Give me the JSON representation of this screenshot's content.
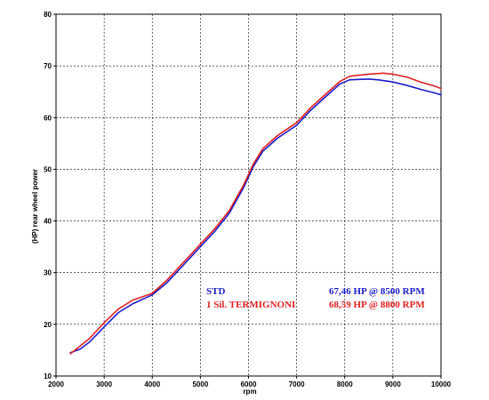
{
  "chart_data": {
    "type": "line",
    "xlabel": "rpm",
    "ylabel": "(HP)  rear wheel power",
    "xlim": [
      2000,
      10000
    ],
    "ylim": [
      10,
      80
    ],
    "x_ticks": [
      "2000",
      "3000",
      "4000",
      "5000",
      "6000",
      "7000",
      "8000",
      "9000",
      "10000"
    ],
    "y_ticks": [
      "10",
      "20",
      "30",
      "40",
      "50",
      "60",
      "70",
      "80"
    ],
    "grid": true,
    "series": [
      {
        "name": "STD",
        "summary": "67,46 HP @ 8500 RPM",
        "color": "#1c1cc8",
        "x": [
          2300,
          2500,
          2700,
          3000,
          3300,
          3600,
          4000,
          4300,
          4600,
          5000,
          5300,
          5600,
          5900,
          6100,
          6300,
          6600,
          7000,
          7300,
          7600,
          7900,
          8100,
          8300,
          8500,
          8700,
          9000,
          9300,
          9600,
          9900,
          10000
        ],
        "values": [
          14.5,
          15.2,
          16.6,
          19.5,
          22.3,
          24.0,
          25.7,
          28.0,
          31.0,
          35.0,
          38.0,
          41.5,
          46.5,
          50.5,
          53.5,
          56.0,
          58.5,
          61.5,
          64.0,
          66.5,
          67.3,
          67.4,
          67.46,
          67.3,
          66.9,
          66.2,
          65.4,
          64.7,
          64.4
        ]
      },
      {
        "name": "1 Sil. TERMIGNONI",
        "summary": "68,59 HP @ 8800 RPM",
        "color": "#e02020",
        "x": [
          2300,
          2500,
          2700,
          3000,
          3300,
          3600,
          4000,
          4300,
          4600,
          5000,
          5300,
          5600,
          5900,
          6100,
          6300,
          6600,
          7000,
          7300,
          7600,
          7900,
          8100,
          8300,
          8500,
          8800,
          9000,
          9300,
          9600,
          9900,
          10000
        ],
        "values": [
          14.3,
          15.8,
          17.3,
          20.3,
          23.0,
          24.7,
          26.0,
          28.5,
          31.5,
          35.5,
          38.5,
          42.0,
          47.0,
          51.0,
          54.0,
          56.5,
          59.0,
          62.0,
          64.5,
          67.0,
          68.0,
          68.2,
          68.4,
          68.59,
          68.4,
          67.8,
          66.8,
          66.0,
          65.6
        ]
      }
    ]
  }
}
